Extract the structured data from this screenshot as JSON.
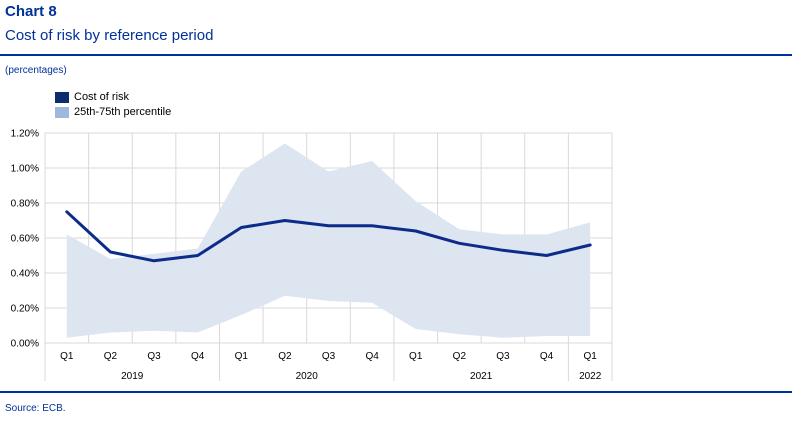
{
  "header": {
    "chart_number": "Chart 8",
    "title": "Cost of risk by reference period"
  },
  "unit_note": "(percentages)",
  "source": "Source: ECB.",
  "colors": {
    "brand": "#003299",
    "line": "#0d2c8a",
    "band_fill": "#dde5f1",
    "band_legend": "#9db8dc",
    "line_legend": "#0d2c6e",
    "grid": "#d9d9d9"
  },
  "chart_data": {
    "type": "line",
    "title": "Cost of risk by reference period",
    "x": [
      "Q1",
      "Q2",
      "Q3",
      "Q4",
      "Q1",
      "Q2",
      "Q3",
      "Q4",
      "Q1",
      "Q2",
      "Q3",
      "Q4",
      "Q1"
    ],
    "year_groups": [
      {
        "label": "2019",
        "start": 0,
        "end": 3
      },
      {
        "label": "2020",
        "start": 4,
        "end": 7
      },
      {
        "label": "2021",
        "start": 8,
        "end": 11
      },
      {
        "label": "2022",
        "start": 12,
        "end": 12
      }
    ],
    "ylim": [
      0,
      1.2
    ],
    "yticks": [
      0,
      0.2,
      0.4,
      0.6,
      0.8,
      1.0,
      1.2
    ],
    "ytick_labels": [
      "0.00%",
      "0.20%",
      "0.40%",
      "0.60%",
      "0.80%",
      "1.00%",
      "1.20%"
    ],
    "grid": true,
    "legend_position": "top-left",
    "series": [
      {
        "name": "Cost of risk",
        "kind": "line",
        "values": [
          0.75,
          0.52,
          0.47,
          0.5,
          0.66,
          0.7,
          0.67,
          0.67,
          0.64,
          0.57,
          0.53,
          0.5,
          0.56
        ]
      },
      {
        "name": "25th-75th percentile",
        "kind": "band",
        "lower": [
          0.03,
          0.06,
          0.07,
          0.06,
          0.16,
          0.27,
          0.24,
          0.23,
          0.08,
          0.05,
          0.03,
          0.04,
          0.04
        ],
        "upper": [
          0.62,
          0.48,
          0.51,
          0.54,
          0.98,
          1.14,
          0.98,
          1.04,
          0.81,
          0.65,
          0.62,
          0.62,
          0.69
        ]
      }
    ]
  }
}
